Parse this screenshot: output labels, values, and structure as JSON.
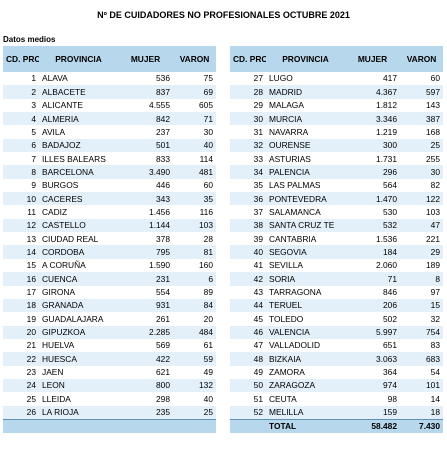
{
  "title": "Nº DE CUIDADORES NO PROFESIONALES OCTUBRE 2021",
  "subtitle": "Datos medios",
  "headers": {
    "cod": "CD. PROV",
    "provincia": "PROVINCIA",
    "mujer": "MUJER",
    "varon": "VARON"
  },
  "left_rows": [
    {
      "cod": "1",
      "provincia": "ALAVA",
      "mujer": "536",
      "varon": "75"
    },
    {
      "cod": "2",
      "provincia": "ALBACETE",
      "mujer": "837",
      "varon": "69"
    },
    {
      "cod": "3",
      "provincia": "ALICANTE",
      "mujer": "4.555",
      "varon": "605"
    },
    {
      "cod": "4",
      "provincia": "ALMERIA",
      "mujer": "842",
      "varon": "71"
    },
    {
      "cod": "5",
      "provincia": "AVILA",
      "mujer": "237",
      "varon": "30"
    },
    {
      "cod": "6",
      "provincia": "BADAJOZ",
      "mujer": "501",
      "varon": "40"
    },
    {
      "cod": "7",
      "provincia": "ILLES BALEARS",
      "mujer": "833",
      "varon": "114"
    },
    {
      "cod": "8",
      "provincia": "BARCELONA",
      "mujer": "3.490",
      "varon": "481"
    },
    {
      "cod": "9",
      "provincia": "BURGOS",
      "mujer": "446",
      "varon": "60"
    },
    {
      "cod": "10",
      "provincia": "CACERES",
      "mujer": "343",
      "varon": "35"
    },
    {
      "cod": "11",
      "provincia": "CADIZ",
      "mujer": "1.456",
      "varon": "116"
    },
    {
      "cod": "12",
      "provincia": "CASTELLO",
      "mujer": "1.144",
      "varon": "103"
    },
    {
      "cod": "13",
      "provincia": "CIUDAD REAL",
      "mujer": "378",
      "varon": "28"
    },
    {
      "cod": "14",
      "provincia": "CORDOBA",
      "mujer": "795",
      "varon": "81"
    },
    {
      "cod": "15",
      "provincia": "A CORUÑA",
      "mujer": "1.590",
      "varon": "160"
    },
    {
      "cod": "16",
      "provincia": "CUENCA",
      "mujer": "231",
      "varon": "6"
    },
    {
      "cod": "17",
      "provincia": "GIRONA",
      "mujer": "554",
      "varon": "89"
    },
    {
      "cod": "18",
      "provincia": "GRANADA",
      "mujer": "931",
      "varon": "84"
    },
    {
      "cod": "19",
      "provincia": "GUADALAJARA",
      "mujer": "261",
      "varon": "20"
    },
    {
      "cod": "20",
      "provincia": "GIPUZKOA",
      "mujer": "2.285",
      "varon": "484"
    },
    {
      "cod": "21",
      "provincia": "HUELVA",
      "mujer": "569",
      "varon": "61"
    },
    {
      "cod": "22",
      "provincia": "HUESCA",
      "mujer": "422",
      "varon": "59"
    },
    {
      "cod": "23",
      "provincia": "JAEN",
      "mujer": "621",
      "varon": "49"
    },
    {
      "cod": "24",
      "provincia": "LEON",
      "mujer": "800",
      "varon": "132"
    },
    {
      "cod": "25",
      "provincia": "LLEIDA",
      "mujer": "298",
      "varon": "40"
    },
    {
      "cod": "26",
      "provincia": "LA RIOJA",
      "mujer": "235",
      "varon": "25"
    }
  ],
  "right_rows": [
    {
      "cod": "27",
      "provincia": "LUGO",
      "mujer": "417",
      "varon": "60"
    },
    {
      "cod": "28",
      "provincia": "MADRID",
      "mujer": "4.367",
      "varon": "597"
    },
    {
      "cod": "29",
      "provincia": "MALAGA",
      "mujer": "1.812",
      "varon": "143"
    },
    {
      "cod": "30",
      "provincia": "MURCIA",
      "mujer": "3.346",
      "varon": "387"
    },
    {
      "cod": "31",
      "provincia": "NAVARRA",
      "mujer": "1.219",
      "varon": "168"
    },
    {
      "cod": "32",
      "provincia": "OURENSE",
      "mujer": "300",
      "varon": "25"
    },
    {
      "cod": "33",
      "provincia": "ASTURIAS",
      "mujer": "1.731",
      "varon": "255"
    },
    {
      "cod": "34",
      "provincia": "PALENCIA",
      "mujer": "296",
      "varon": "30"
    },
    {
      "cod": "35",
      "provincia": "LAS PALMAS",
      "mujer": "564",
      "varon": "82"
    },
    {
      "cod": "36",
      "provincia": "PONTEVEDRA",
      "mujer": "1.470",
      "varon": "122"
    },
    {
      "cod": "37",
      "provincia": "SALAMANCA",
      "mujer": "530",
      "varon": "103"
    },
    {
      "cod": "38",
      "provincia": "SANTA CRUZ TE",
      "mujer": "532",
      "varon": "47"
    },
    {
      "cod": "39",
      "provincia": "CANTABRIA",
      "mujer": "1.536",
      "varon": "221"
    },
    {
      "cod": "40",
      "provincia": "SEGOVIA",
      "mujer": "184",
      "varon": "29"
    },
    {
      "cod": "41",
      "provincia": "SEVILLA",
      "mujer": "2.060",
      "varon": "189"
    },
    {
      "cod": "42",
      "provincia": "SORIA",
      "mujer": "71",
      "varon": "8"
    },
    {
      "cod": "43",
      "provincia": "TARRAGONA",
      "mujer": "846",
      "varon": "97"
    },
    {
      "cod": "44",
      "provincia": "TERUEL",
      "mujer": "206",
      "varon": "15"
    },
    {
      "cod": "45",
      "provincia": "TOLEDO",
      "mujer": "502",
      "varon": "32"
    },
    {
      "cod": "46",
      "provincia": "VALENCIA",
      "mujer": "5.997",
      "varon": "754"
    },
    {
      "cod": "47",
      "provincia": "VALLADOLID",
      "mujer": "651",
      "varon": "83"
    },
    {
      "cod": "48",
      "provincia": "BIZKAIA",
      "mujer": "3.063",
      "varon": "683"
    },
    {
      "cod": "49",
      "provincia": "ZAMORA",
      "mujer": "364",
      "varon": "54"
    },
    {
      "cod": "50",
      "provincia": "ZARAGOZA",
      "mujer": "974",
      "varon": "101"
    },
    {
      "cod": "51",
      "provincia": "CEUTA",
      "mujer": "98",
      "varon": "14"
    },
    {
      "cod": "52",
      "provincia": "MELILLA",
      "mujer": "159",
      "varon": "18"
    }
  ],
  "totals": {
    "label": "TOTAL",
    "mujer": "58.482",
    "varon": "7.430"
  },
  "colors": {
    "header_bg": "#b7d7ec",
    "band_bg": "#e4f0f9"
  }
}
